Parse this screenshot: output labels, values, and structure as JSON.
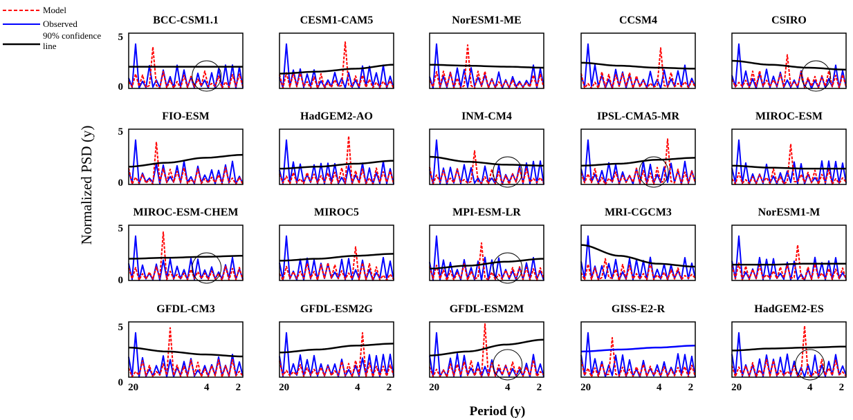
{
  "legend": {
    "entries": [
      {
        "label": "Model",
        "color": "#ff0000",
        "style": "dashed"
      },
      {
        "label": "Observed",
        "color": "#0000ff",
        "style": "solid"
      },
      {
        "label_line1": "90% confidence",
        "label_line2": "line",
        "color": "#000000",
        "style": "solid"
      }
    ]
  },
  "ylabel": "Normalized PSD (y)",
  "xlabel": "Period (y)",
  "yticks": [
    "0",
    "5"
  ],
  "xticks": [
    "20",
    "4",
    "2"
  ],
  "colors": {
    "model": "#ff0000",
    "observed": "#0000ff",
    "confidence": "#000000",
    "marker": "#000000"
  },
  "chart_data": {
    "type": "line",
    "layout": "small multiples, 4 rows x 5 columns",
    "xlabel": "Period (y)",
    "ylabel": "Normalized PSD (y)",
    "xscale": "log (period), 20 on left to 2 on right",
    "xlim": [
      20,
      2
    ],
    "ylim": [
      0,
      5
    ],
    "series_names": [
      "Model",
      "Observed",
      "90% confidence line"
    ],
    "panels": [
      {
        "title": "BCC-CSM1.1",
        "confidence": [
          2.2,
          2.2,
          2.2,
          2.2
        ],
        "model_peak": 4.2,
        "circled_x": 4
      },
      {
        "title": "CESM1-CAM5",
        "confidence": [
          1.5,
          1.7,
          2.0,
          2.4
        ],
        "model_peak": 4.7,
        "circled_x": null
      },
      {
        "title": "NorESM1-ME",
        "confidence": [
          2.4,
          2.3,
          2.2,
          2.1
        ],
        "model_peak": 4.4,
        "circled_x": null
      },
      {
        "title": "CCSM4",
        "confidence": [
          2.6,
          2.3,
          2.1,
          2.0
        ],
        "model_peak": 4.1,
        "circled_x": null
      },
      {
        "title": "CSIRO",
        "confidence": [
          2.8,
          2.4,
          2.1,
          1.9
        ],
        "model_peak": 3.4,
        "circled_x": 3.5
      },
      {
        "title": "FIO-ESM",
        "confidence": [
          1.8,
          2.2,
          2.7,
          3.0
        ],
        "model_peak": 4.3,
        "circled_x": null
      },
      {
        "title": "HadGEM2-AO",
        "confidence": [
          1.6,
          1.8,
          2.1,
          2.4
        ],
        "model_peak": 4.9,
        "circled_x": null
      },
      {
        "title": "INM-CM4",
        "confidence": [
          2.8,
          2.3,
          2.0,
          1.9
        ],
        "model_peak": 3.4,
        "circled_x": 4
      },
      {
        "title": "IPSL-CMA5-MR",
        "confidence": [
          1.9,
          2.1,
          2.5,
          2.7
        ],
        "model_peak": 4.6,
        "circled_x": 4.5
      },
      {
        "title": "MIROC-ESM",
        "confidence": [
          1.9,
          1.7,
          1.6,
          1.6
        ],
        "model_peak": 4.1,
        "circled_x": null
      },
      {
        "title": "MIROC-ESM-CHEM",
        "confidence": [
          2.2,
          2.3,
          2.4,
          2.5
        ],
        "model_peak": 4.9,
        "circled_x": 4
      },
      {
        "title": "MIROC5",
        "confidence": [
          2.0,
          2.2,
          2.5,
          2.7
        ],
        "model_peak": 3.4,
        "circled_x": null
      },
      {
        "title": "MPI-ESM-LR",
        "confidence": [
          1.2,
          1.5,
          1.9,
          2.2
        ],
        "model_peak": 3.8,
        "circled_x": 4
      },
      {
        "title": "MRI-CGCM3",
        "confidence": [
          3.6,
          2.5,
          1.7,
          1.4
        ],
        "model_peak": 2.2,
        "circled_x": null
      },
      {
        "title": "NorESM1-M",
        "confidence": [
          1.6,
          1.6,
          1.7,
          1.7
        ],
        "model_peak": 3.6,
        "circled_x": null
      },
      {
        "title": "GFDL-CM3",
        "confidence": [
          3.0,
          2.6,
          2.3,
          2.1
        ],
        "model_peak": 5.0,
        "circled_x": null
      },
      {
        "title": "GFDL-ESM2G",
        "confidence": [
          2.5,
          2.8,
          3.2,
          3.4
        ],
        "model_peak": 4.5,
        "circled_x": null
      },
      {
        "title": "GFDL-ESM2M",
        "confidence": [
          2.2,
          2.6,
          3.3,
          3.8
        ],
        "model_peak": 5.4,
        "circled_x": 4
      },
      {
        "title": "GISS-E2-R",
        "confidence": [
          2.6,
          2.8,
          3.0,
          3.2
        ],
        "model_peak": 4.0,
        "circled_x": null
      },
      {
        "title": "HadGEM2-ES",
        "confidence": [
          2.7,
          2.9,
          3.0,
          3.1
        ],
        "model_peak": 5.2,
        "circled_x": 4
      }
    ]
  }
}
